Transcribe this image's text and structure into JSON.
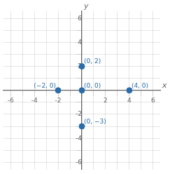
{
  "chart_data": {
    "type": "scatter",
    "x": [
      4,
      -2,
      0,
      0,
      0
    ],
    "values": [
      0,
      0,
      0,
      2,
      -3
    ],
    "value_labels": [
      "(4, 0)",
      "(−2, 0)",
      "(0, 0)",
      "(0, 2)",
      "(0, −3)"
    ],
    "data_labels": true,
    "color": "#2b6da8",
    "xlabel": "x",
    "ylabel": "y",
    "xlim": [
      -6.6,
      6.6
    ],
    "ylim": [
      -6.6,
      6.6
    ],
    "xticks": [
      -6,
      {
        "value": -5,
        "label": null
      },
      -4,
      {
        "value": -3,
        "label": null
      },
      -2,
      {
        "value": -1,
        "label": null
      },
      {
        "value": 0,
        "label": null
      },
      {
        "value": 1,
        "label": null
      },
      2,
      {
        "value": 3,
        "label": null
      },
      4,
      {
        "value": 5,
        "label": null
      },
      6
    ],
    "yticks": [
      -6,
      {
        "value": -5,
        "label": null
      },
      -4,
      {
        "value": -3,
        "label": null
      },
      -2,
      {
        "value": -1,
        "label": null
      },
      {
        "value": 0,
        "label": null
      },
      {
        "value": 1,
        "label": null
      },
      2,
      {
        "value": 3,
        "label": null
      },
      4,
      {
        "value": 5,
        "label": null
      },
      6
    ],
    "grid": true
  }
}
